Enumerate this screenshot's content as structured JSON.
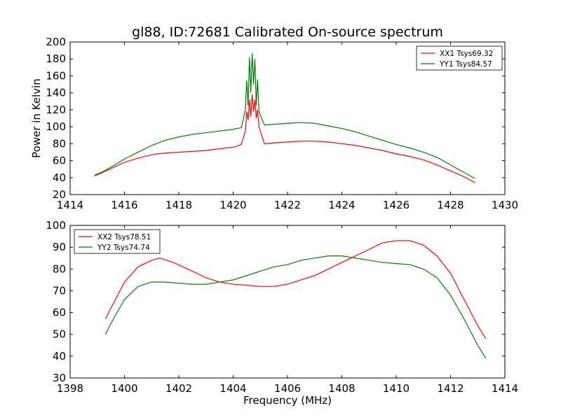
{
  "figure": {
    "title": "gl88, ID:72681 Calibrated On-source spectrum"
  },
  "chart_data": [
    {
      "type": "line",
      "title": "gl88, ID:72681 Calibrated On-source spectrum",
      "xlabel": "",
      "ylabel": "Power in Kelvin",
      "xlim": [
        1414,
        1430
      ],
      "ylim": [
        20,
        200
      ],
      "xticks": [
        1414,
        1416,
        1418,
        1420,
        1422,
        1424,
        1426,
        1428,
        1430
      ],
      "yticks": [
        20,
        40,
        60,
        80,
        100,
        120,
        140,
        160,
        180,
        200
      ],
      "grid": false,
      "legend_position": "upper right",
      "series": [
        {
          "name": "XX1 Tsys69.32",
          "color": "#ff0000",
          "points": [
            [
              1414.9,
              42
            ],
            [
              1415.2,
              46
            ],
            [
              1415.6,
              52
            ],
            [
              1416.0,
              58
            ],
            [
              1416.5,
              63
            ],
            [
              1417.0,
              67
            ],
            [
              1417.5,
              69
            ],
            [
              1418.0,
              70
            ],
            [
              1418.5,
              71
            ],
            [
              1419.0,
              72
            ],
            [
              1419.5,
              74
            ],
            [
              1420.0,
              76
            ],
            [
              1420.3,
              79
            ],
            [
              1420.45,
              95
            ],
            [
              1420.5,
              118
            ],
            [
              1420.55,
              108
            ],
            [
              1420.6,
              132
            ],
            [
              1420.65,
              112
            ],
            [
              1420.7,
              138
            ],
            [
              1420.75,
              118
            ],
            [
              1420.8,
              132
            ],
            [
              1420.85,
              110
            ],
            [
              1420.9,
              120
            ],
            [
              1420.95,
              100
            ],
            [
              1421.05,
              90
            ],
            [
              1421.15,
              80
            ],
            [
              1421.5,
              81
            ],
            [
              1422.0,
              82
            ],
            [
              1422.5,
              83
            ],
            [
              1423.0,
              83
            ],
            [
              1423.5,
              82
            ],
            [
              1424.0,
              80
            ],
            [
              1424.5,
              78
            ],
            [
              1425.0,
              75
            ],
            [
              1425.5,
              72
            ],
            [
              1426.0,
              68
            ],
            [
              1426.5,
              65
            ],
            [
              1427.0,
              61
            ],
            [
              1427.5,
              55
            ],
            [
              1428.0,
              48
            ],
            [
              1428.5,
              41
            ],
            [
              1428.9,
              34
            ]
          ]
        },
        {
          "name": "YY1 Tsys84.57",
          "color": "#008000",
          "points": [
            [
              1414.9,
              43
            ],
            [
              1415.2,
              47
            ],
            [
              1415.6,
              54
            ],
            [
              1416.0,
              62
            ],
            [
              1416.5,
              70
            ],
            [
              1417.0,
              78
            ],
            [
              1417.5,
              84
            ],
            [
              1418.0,
              88
            ],
            [
              1418.5,
              91
            ],
            [
              1419.0,
              93
            ],
            [
              1419.5,
              95
            ],
            [
              1420.0,
              97
            ],
            [
              1420.3,
              99
            ],
            [
              1420.45,
              120
            ],
            [
              1420.5,
              155
            ],
            [
              1420.55,
              125
            ],
            [
              1420.6,
              182
            ],
            [
              1420.65,
              140
            ],
            [
              1420.7,
              187
            ],
            [
              1420.75,
              150
            ],
            [
              1420.8,
              180
            ],
            [
              1420.85,
              125
            ],
            [
              1420.9,
              156
            ],
            [
              1420.95,
              118
            ],
            [
              1421.05,
              110
            ],
            [
              1421.15,
              102
            ],
            [
              1421.5,
              103
            ],
            [
              1422.0,
              104
            ],
            [
              1422.5,
              105
            ],
            [
              1423.0,
              104
            ],
            [
              1423.5,
              101
            ],
            [
              1424.0,
              98
            ],
            [
              1424.5,
              94
            ],
            [
              1425.0,
              89
            ],
            [
              1425.5,
              84
            ],
            [
              1426.0,
              79
            ],
            [
              1426.5,
              75
            ],
            [
              1427.0,
              70
            ],
            [
              1427.5,
              64
            ],
            [
              1428.0,
              55
            ],
            [
              1428.5,
              46
            ],
            [
              1428.9,
              39
            ]
          ]
        }
      ]
    },
    {
      "type": "line",
      "title": "",
      "xlabel": "Frequency (MHz)",
      "ylabel": "",
      "xlim": [
        1398,
        1414
      ],
      "ylim": [
        30,
        100
      ],
      "xticks": [
        1398,
        1400,
        1402,
        1404,
        1406,
        1408,
        1410,
        1412,
        1414
      ],
      "yticks": [
        30,
        40,
        50,
        60,
        70,
        80,
        90,
        100
      ],
      "grid": false,
      "legend_position": "upper left",
      "series": [
        {
          "name": "XX2 Tsys78.51",
          "color": "#ff0000",
          "points": [
            [
              1399.3,
              57
            ],
            [
              1399.5,
              62
            ],
            [
              1400.0,
              74
            ],
            [
              1400.5,
              81
            ],
            [
              1401.0,
              84
            ],
            [
              1401.3,
              85
            ],
            [
              1401.8,
              83
            ],
            [
              1402.5,
              79
            ],
            [
              1403.0,
              76
            ],
            [
              1403.5,
              74
            ],
            [
              1404.0,
              73
            ],
            [
              1404.5,
              72.5
            ],
            [
              1405.0,
              72
            ],
            [
              1405.5,
              72
            ],
            [
              1406.0,
              73
            ],
            [
              1406.5,
              75
            ],
            [
              1407.0,
              77
            ],
            [
              1407.5,
              80
            ],
            [
              1408.0,
              83
            ],
            [
              1408.5,
              86
            ],
            [
              1409.0,
              89
            ],
            [
              1409.5,
              92
            ],
            [
              1410.0,
              93
            ],
            [
              1410.5,
              93
            ],
            [
              1411.0,
              91
            ],
            [
              1411.5,
              86
            ],
            [
              1412.0,
              78
            ],
            [
              1412.5,
              66
            ],
            [
              1413.0,
              54
            ],
            [
              1413.3,
              48
            ]
          ]
        },
        {
          "name": "YY2 Tsys74.74",
          "color": "#008000",
          "points": [
            [
              1399.3,
              50
            ],
            [
              1399.5,
              55
            ],
            [
              1400.0,
              66
            ],
            [
              1400.5,
              72
            ],
            [
              1401.0,
              74
            ],
            [
              1401.5,
              74
            ],
            [
              1402.0,
              73.5
            ],
            [
              1402.5,
              73
            ],
            [
              1403.0,
              73
            ],
            [
              1403.5,
              74
            ],
            [
              1404.0,
              75
            ],
            [
              1404.5,
              77
            ],
            [
              1405.0,
              79
            ],
            [
              1405.5,
              81
            ],
            [
              1406.0,
              82
            ],
            [
              1406.5,
              84
            ],
            [
              1407.0,
              85
            ],
            [
              1407.5,
              86
            ],
            [
              1408.0,
              86
            ],
            [
              1408.5,
              85
            ],
            [
              1409.0,
              84
            ],
            [
              1409.5,
              83
            ],
            [
              1410.0,
              82.5
            ],
            [
              1410.5,
              82
            ],
            [
              1411.0,
              80
            ],
            [
              1411.5,
              76
            ],
            [
              1412.0,
              68
            ],
            [
              1412.5,
              57
            ],
            [
              1413.0,
              45
            ],
            [
              1413.3,
              39
            ]
          ]
        }
      ]
    }
  ]
}
